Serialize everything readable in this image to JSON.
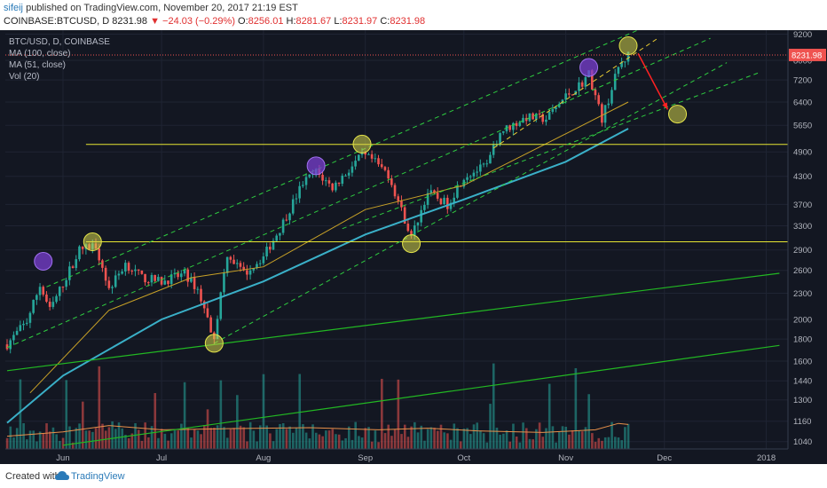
{
  "header": {
    "user": "sifeij",
    "published": "published on TradingView.com, November 20, 2017 21:19 EST",
    "symbol": "COINBASE:BTCUSD, D",
    "last": "8231.98",
    "change": "−24.03 (−0.29%)",
    "o_label": "O:",
    "o_value": "8256.01",
    "h_label": "H:",
    "h_value": "8281.67",
    "l_label": "L:",
    "l_value": "8231.97",
    "c_label": "C:",
    "c_value": "8231.98"
  },
  "legend": {
    "pair": "BTC/USD, D, COINBASE",
    "ma100": "MA (100, close)",
    "ma51": "MA (51, close)",
    "vol": "Vol (20)"
  },
  "footer": {
    "created": "Created with",
    "brand": "TradingView"
  },
  "colors": {
    "background": "#131722",
    "up": "#26a69a",
    "down": "#ef5350",
    "ma100": "#3ab0c8",
    "ma51": "#c9a227",
    "channel": "#2ecc40",
    "trendline": "#22b822",
    "horizontal": "#e6e632",
    "price_marker": "#ef5350",
    "circle_yellow": "#d4d44a",
    "circle_purple": "#7a3fd0",
    "arrow": "#ff2222"
  },
  "chart_data": {
    "type": "candlestick",
    "scale": "log",
    "x": [
      "2017-05-15",
      "2017-11-20"
    ],
    "ylim": [
      1000,
      9400
    ],
    "y_ticks": [
      9200,
      8000,
      7200,
      6400,
      5650,
      4900,
      4300,
      3700,
      3300,
      2900,
      2600,
      2300,
      2000,
      1800,
      1600,
      1440,
      1300,
      1160,
      1040
    ],
    "x_ticks": [
      "Jun",
      "Jul",
      "Aug",
      "Sep",
      "Oct",
      "Nov",
      "Dec",
      "2018"
    ],
    "last_price_label": "8231.98",
    "price_path": [
      [
        "2017-05-15",
        1750
      ],
      [
        "2017-05-21",
        1980
      ],
      [
        "2017-05-25",
        2400
      ],
      [
        "2017-05-28",
        2100
      ],
      [
        "2017-06-06",
        2900
      ],
      [
        "2017-06-11",
        2980
      ],
      [
        "2017-06-15",
        2350
      ],
      [
        "2017-06-20",
        2700
      ],
      [
        "2017-06-25",
        2500
      ],
      [
        "2017-07-01",
        2450
      ],
      [
        "2017-07-08",
        2550
      ],
      [
        "2017-07-12",
        2350
      ],
      [
        "2017-07-16",
        1900
      ],
      [
        "2017-07-17",
        1830
      ],
      [
        "2017-07-21",
        2850
      ],
      [
        "2017-07-26",
        2550
      ],
      [
        "2017-08-01",
        2800
      ],
      [
        "2017-08-06",
        3250
      ],
      [
        "2017-08-13",
        4150
      ],
      [
        "2017-08-17",
        4400
      ],
      [
        "2017-08-22",
        4050
      ],
      [
        "2017-08-31",
        4800
      ],
      [
        "2017-09-03",
        4700
      ],
      [
        "2017-09-08",
        4350
      ],
      [
        "2017-09-15",
        3100
      ],
      [
        "2017-09-20",
        3950
      ],
      [
        "2017-09-26",
        3700
      ],
      [
        "2017-10-01",
        4300
      ],
      [
        "2017-10-08",
        4550
      ],
      [
        "2017-10-12",
        5450
      ],
      [
        "2017-10-20",
        5900
      ],
      [
        "2017-10-26",
        5850
      ],
      [
        "2017-11-01",
        6600
      ],
      [
        "2017-11-06",
        7100
      ],
      [
        "2017-11-08",
        7450
      ],
      [
        "2017-11-12",
        5850
      ],
      [
        "2017-11-14",
        6500
      ],
      [
        "2017-11-17",
        7700
      ],
      [
        "2017-11-20",
        8231.98
      ]
    ],
    "ma100": [
      [
        "2017-05-15",
        1150
      ],
      [
        "2017-06-01",
        1480
      ],
      [
        "2017-07-01",
        2000
      ],
      [
        "2017-08-01",
        2450
      ],
      [
        "2017-09-01",
        3150
      ],
      [
        "2017-10-01",
        3800
      ],
      [
        "2017-11-01",
        4650
      ],
      [
        "2017-11-20",
        5550
      ]
    ],
    "ma51": [
      [
        "2017-05-22",
        1350
      ],
      [
        "2017-06-15",
        2100
      ],
      [
        "2017-07-10",
        2500
      ],
      [
        "2017-08-01",
        2650
      ],
      [
        "2017-09-01",
        3600
      ],
      [
        "2017-10-01",
        4100
      ],
      [
        "2017-11-01",
        5400
      ],
      [
        "2017-11-20",
        6400
      ]
    ],
    "volume_ylim": [
      0,
      1000
    ],
    "volume_ma": [
      [
        "2017-05-15",
        120
      ],
      [
        "2017-06-01",
        160
      ],
      [
        "2017-06-15",
        220
      ],
      [
        "2017-07-01",
        180
      ],
      [
        "2017-07-20",
        190
      ],
      [
        "2017-08-15",
        200
      ],
      [
        "2017-09-05",
        180
      ],
      [
        "2017-09-20",
        195
      ],
      [
        "2017-10-05",
        170
      ],
      [
        "2017-10-25",
        155
      ],
      [
        "2017-11-10",
        180
      ],
      [
        "2017-11-17",
        240
      ],
      [
        "2017-11-20",
        230
      ]
    ],
    "drawings": {
      "horizontal_lines": [
        5100,
        3030
      ],
      "channel_lines": [
        [
          [
            "2017-05-15",
            1720
          ],
          [
            "2017-12-15",
            9000
          ]
        ],
        [
          [
            "2017-05-27",
            2380
          ],
          [
            "2017-11-27",
            9700
          ]
        ],
        [
          [
            "2017-07-17",
            1760
          ],
          [
            "2017-12-20",
            7900
          ]
        ],
        [
          [
            "2017-08-25",
            3250
          ],
          [
            "2017-12-30",
            7500
          ]
        ],
        [
          [
            "2017-10-10",
            5000
          ],
          [
            "2017-11-29",
            9000
          ]
        ]
      ],
      "long_trendlines": [
        [
          [
            "2017-05-15",
            1520
          ],
          [
            "2018-01-05",
            2560
          ]
        ],
        [
          [
            "2017-06-01",
            1020
          ],
          [
            "2018-01-05",
            1740
          ]
        ]
      ],
      "circles_yellow": [
        [
          "2017-06-10",
          3030
        ],
        [
          "2017-07-17",
          1760
        ],
        [
          "2017-08-31",
          5110
        ],
        [
          "2017-09-15",
          3000
        ],
        [
          "2017-11-20",
          8650
        ],
        [
          "2017-12-05",
          6000
        ]
      ],
      "circles_purple": [
        [
          "2017-05-26",
          2730
        ],
        [
          "2017-08-17",
          4550
        ],
        [
          "2017-11-08",
          7700
        ]
      ],
      "arrow": [
        [
          "2017-11-23",
          8300
        ],
        [
          "2017-12-02",
          6150
        ]
      ]
    }
  }
}
